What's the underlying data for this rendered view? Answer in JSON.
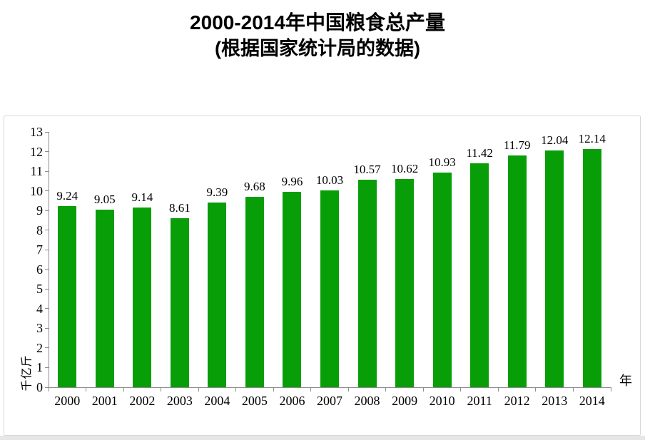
{
  "title": {
    "line1": "2000-2014年中国粮食总产量",
    "line2": "(根据国家统计局的数据)"
  },
  "chart_data": {
    "type": "bar",
    "title": "2000-2014年中国粮食总产量",
    "subtitle": "(根据国家统计局的数据)",
    "categories": [
      "2000",
      "2001",
      "2002",
      "2003",
      "2004",
      "2005",
      "2006",
      "2007",
      "2008",
      "2009",
      "2010",
      "2011",
      "2012",
      "2013",
      "2014"
    ],
    "values": [
      9.24,
      9.05,
      9.14,
      8.61,
      9.39,
      9.68,
      9.96,
      10.03,
      10.57,
      10.62,
      10.93,
      11.42,
      11.79,
      12.04,
      12.14
    ],
    "xlabel": "年",
    "ylabel": "千亿斤",
    "ylim": [
      0,
      13
    ],
    "yticks": [
      0,
      1,
      2,
      3,
      4,
      5,
      6,
      7,
      8,
      9,
      10,
      11,
      12,
      13
    ],
    "grid": false,
    "legend": "none",
    "data_labels": true,
    "bar_color": "#089E08"
  },
  "colors": {
    "bar": "#089E08",
    "axis": "#8c8c8c",
    "chart_border": "#d7d7d7",
    "text": "#000000",
    "window_edge": "#e6e6e6"
  }
}
